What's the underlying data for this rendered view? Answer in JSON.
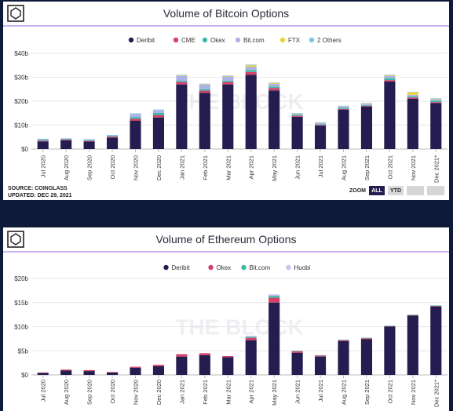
{
  "colors": {
    "deribit": "#231e4f",
    "cme": "#d6406a",
    "okex": "#3fb8a3",
    "bitcom": "#aab3e8",
    "ftx": "#f2d02e",
    "others": "#7ec4e8",
    "huobi": "#c8c3f0",
    "page_bg": "#0e1a3a",
    "header_line": "#c9b5f0"
  },
  "chart_data": [
    {
      "type": "bar",
      "stacked": true,
      "title": "Volume of Bitcoin Options",
      "watermark": "THE BLOCK",
      "categories": [
        "Jul 2020",
        "Aug 2020",
        "Sep 2020",
        "Oct 2020",
        "Nov 2020",
        "Dec 2020",
        "Jan 2021",
        "Feb 2021",
        "Mar 2021",
        "Apr 2021",
        "May 2021",
        "Jun 2021",
        "Jul 2021",
        "Aug 2021",
        "Sep 2021",
        "Oct 2021",
        "Nov 2021",
        "Dec 2021*"
      ],
      "yticks": [
        "$0",
        "$10b",
        "$20b",
        "$30b",
        "$40b"
      ],
      "ylim": [
        0,
        40
      ],
      "legend_position": "top-center",
      "series": [
        {
          "name": "Deribit",
          "color_key": "deribit",
          "values": [
            3.2,
            3.6,
            3.1,
            4.8,
            11.8,
            13.2,
            27.0,
            23.5,
            27.0,
            31.0,
            24.5,
            13.5,
            9.8,
            16.5,
            17.8,
            28.2,
            21.0,
            19.2
          ]
        },
        {
          "name": "CME",
          "color_key": "cme",
          "values": [
            0.3,
            0.3,
            0.3,
            0.4,
            0.8,
            0.9,
            1.0,
            0.9,
            1.0,
            1.2,
            1.0,
            0.4,
            0.3,
            0.3,
            0.3,
            0.6,
            0.5,
            0.4
          ]
        },
        {
          "name": "Okex",
          "color_key": "okex",
          "values": [
            0.3,
            0.2,
            0.3,
            0.3,
            0.8,
            1.0,
            0.5,
            0.6,
            0.6,
            0.8,
            0.6,
            0.4,
            0.3,
            0.4,
            0.3,
            0.8,
            0.5,
            0.6
          ]
        },
        {
          "name": "Bit.com",
          "color_key": "bitcom",
          "values": [
            0.4,
            0.3,
            0.3,
            0.3,
            1.3,
            1.2,
            2.2,
            2.0,
            1.8,
            1.4,
            1.2,
            0.5,
            0.5,
            0.6,
            0.5,
            1.0,
            0.7,
            0.6
          ]
        },
        {
          "name": "FTX",
          "color_key": "ftx",
          "values": [
            0,
            0,
            0,
            0,
            0,
            0,
            0.1,
            0.1,
            0.1,
            0.6,
            0.3,
            0.1,
            0.2,
            0.2,
            0.2,
            0.3,
            1.0,
            0.3
          ]
        },
        {
          "name": "2 Others",
          "color_key": "others",
          "values": [
            0.1,
            0.1,
            0.1,
            0.1,
            0.2,
            0.2,
            0.2,
            0.2,
            0.2,
            0.3,
            0.2,
            0.1,
            0.1,
            0.1,
            0.1,
            0.2,
            0.2,
            0.1
          ]
        }
      ],
      "source": "SOURCE: COINGLASS",
      "updated": "UPDATED: DEC 29, 2021",
      "zoom": {
        "label": "ZOOM",
        "buttons": [
          "ALL",
          "YTD"
        ],
        "active": "ALL"
      }
    },
    {
      "type": "bar",
      "stacked": true,
      "title": "Volume of Ethereum Options",
      "watermark": "THE BLOCK",
      "categories": [
        "Jul 2020",
        "Aug 2020",
        "Sep 2020",
        "Oct 2020",
        "Nov 2020",
        "Dec 2020",
        "Jan 2021",
        "Feb 2021",
        "Mar 2021",
        "Apr 2021",
        "May 2021",
        "Jun 2021",
        "Jul 2021",
        "Aug 2021",
        "Sep 2021",
        "Oct 2021",
        "Nov 2021",
        "Dec 2021*"
      ],
      "yticks": [
        "$0",
        "$5b",
        "$10b",
        "$15b",
        "$20b"
      ],
      "ylim": [
        0,
        20
      ],
      "legend_position": "top-center",
      "series": [
        {
          "name": "Deribit",
          "color_key": "deribit",
          "values": [
            0.4,
            0.9,
            0.8,
            0.5,
            1.5,
            1.8,
            3.8,
            4.1,
            3.7,
            7.2,
            15.0,
            4.6,
            3.8,
            7.0,
            7.4,
            10.0,
            12.3,
            14.2
          ]
        },
        {
          "name": "Okex",
          "color_key": "okex_eth",
          "values": [
            0.1,
            0.2,
            0.2,
            0.1,
            0.2,
            0.3,
            0.5,
            0.4,
            0.2,
            0.5,
            1.0,
            0.3,
            0.2,
            0.2,
            0.2,
            0.1,
            0.1,
            0.1
          ]
        },
        {
          "name": "Bit.com",
          "color_key": "bitcom_eth",
          "values": [
            0,
            0,
            0,
            0,
            0,
            0,
            0,
            0,
            0,
            0.2,
            0.4,
            0.1,
            0.1,
            0.1,
            0.1,
            0.1,
            0.1,
            0.1
          ]
        },
        {
          "name": "Huobi",
          "color_key": "huobi",
          "values": [
            0,
            0,
            0,
            0,
            0,
            0,
            0,
            0,
            0,
            0.2,
            0.3,
            0,
            0,
            0,
            0,
            0,
            0,
            0
          ]
        }
      ]
    }
  ]
}
